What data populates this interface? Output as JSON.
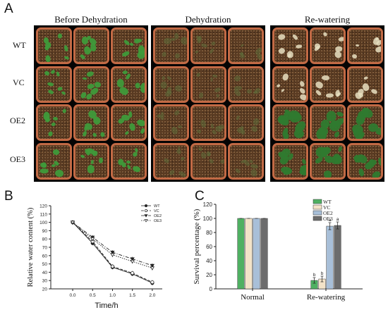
{
  "panel_a": {
    "letter": "A",
    "columns": [
      "Before Dehydration",
      "Dehydration",
      "Re-watering"
    ],
    "rows": [
      "WT",
      "VC",
      "OE2",
      "OE3"
    ]
  },
  "panel_b": {
    "letter": "B"
  },
  "panel_c": {
    "letter": "C"
  },
  "chart_data": [
    {
      "type": "line",
      "panel": "B",
      "xlabel": "Time/h",
      "ylabel": "Relative water content (%)",
      "x": [
        0.0,
        0.5,
        1.0,
        1.5,
        2.0
      ],
      "xticks": [
        "0.0",
        "0.5",
        "1.0",
        "1.5",
        "2.0"
      ],
      "yticks": [
        "20",
        "30",
        "40",
        "50",
        "60",
        "70",
        "80",
        "90",
        "100",
        "110",
        "120"
      ],
      "ylim": [
        20,
        120
      ],
      "legend_position": "top-right",
      "series": [
        {
          "name": "WT",
          "values": [
            100,
            75,
            46,
            38,
            27
          ],
          "marker": "filled-circle",
          "dash": "solid"
        },
        {
          "name": "VC",
          "values": [
            100,
            77,
            47,
            39,
            28
          ],
          "marker": "open-circle",
          "dash": "dash"
        },
        {
          "name": "OE2",
          "values": [
            100,
            82,
            64,
            56,
            48
          ],
          "marker": "filled-triangle",
          "dash": "dashdot"
        },
        {
          "name": "OE3",
          "values": [
            100,
            80,
            61,
            53,
            45
          ],
          "marker": "open-triangle",
          "dash": "dot"
        }
      ]
    },
    {
      "type": "bar",
      "panel": "C",
      "ylabel": "Survival percentage (%)",
      "categories": [
        "Normal",
        "Re-watering"
      ],
      "yticks": [
        "0",
        "20",
        "40",
        "60",
        "80",
        "100",
        "120"
      ],
      "ylim": [
        0,
        120
      ],
      "legend_position": "top-right",
      "series": [
        {
          "name": "WT",
          "values": [
            100,
            12
          ],
          "errors": [
            0,
            4
          ],
          "letters": [
            "",
            "b"
          ],
          "color": "#4fb062"
        },
        {
          "name": "VC",
          "values": [
            100,
            14
          ],
          "errors": [
            0,
            4
          ],
          "letters": [
            "",
            "b"
          ],
          "color": "#f3e3c8"
        },
        {
          "name": "OE2",
          "values": [
            100,
            89
          ],
          "errors": [
            0,
            5
          ],
          "letters": [
            "",
            "a"
          ],
          "color": "#a8bfd8"
        },
        {
          "name": "OE3",
          "values": [
            100,
            90
          ],
          "errors": [
            0,
            5
          ],
          "letters": [
            "",
            "a"
          ],
          "color": "#6c6c6c"
        }
      ]
    }
  ],
  "colors": {
    "pot_rim": "#c26a45",
    "soil": "#5a3b22",
    "healthy_plant": "#3f9a3a",
    "wilted_plant": "#5f6e3a",
    "dead_plant": "#e8dfc0",
    "rewatered_plant": "#2f7a2f"
  }
}
